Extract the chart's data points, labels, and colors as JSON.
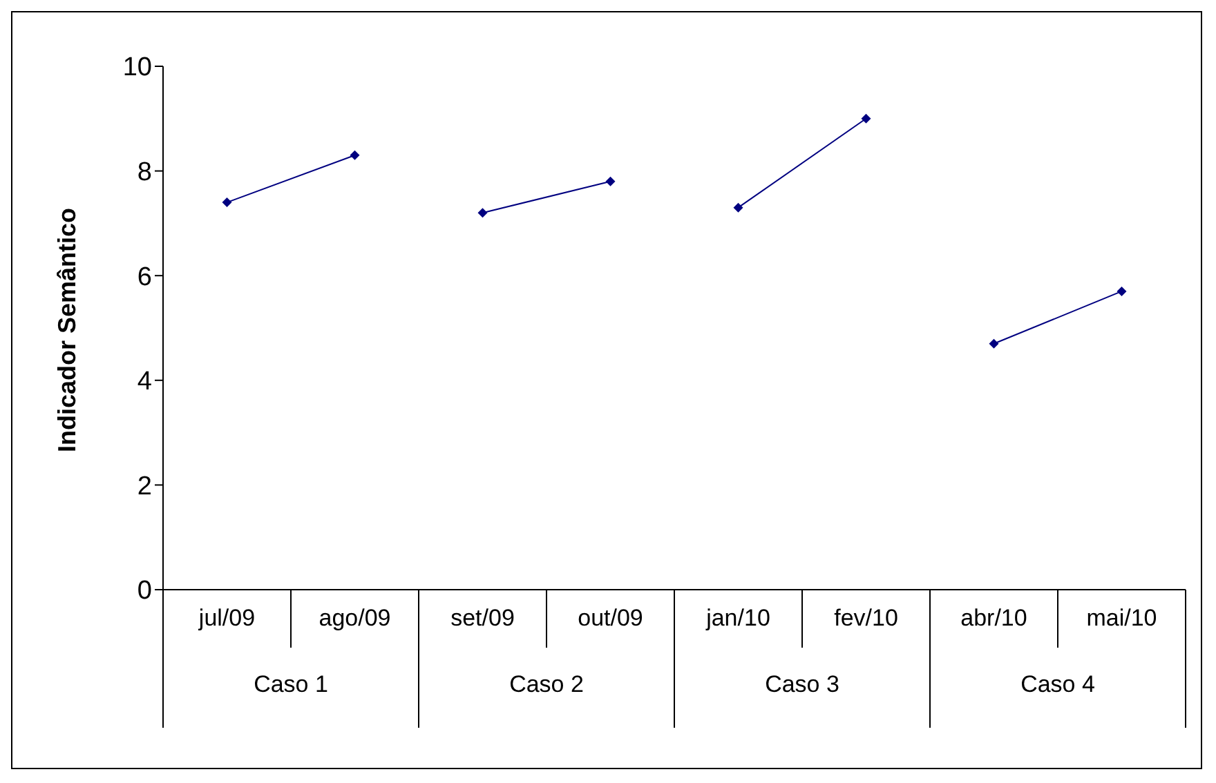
{
  "chart_data": {
    "type": "line",
    "ylabel": "Indicador Semântico",
    "categories": [
      "jul/09",
      "ago/09",
      "set/09",
      "out/09",
      "jan/10",
      "fev/10",
      "abr/10",
      "mai/10"
    ],
    "series": [
      {
        "color": "#000080",
        "values": [
          7.4,
          8.3,
          null,
          null,
          null,
          null,
          null,
          null
        ]
      },
      {
        "color": "#000080",
        "values": [
          null,
          null,
          7.2,
          7.8,
          null,
          null,
          null,
          null
        ]
      },
      {
        "color": "#000080",
        "values": [
          null,
          null,
          null,
          null,
          7.3,
          9.0,
          null,
          null
        ]
      },
      {
        "color": "#000080",
        "values": [
          null,
          null,
          null,
          null,
          null,
          null,
          4.7,
          5.7
        ]
      }
    ],
    "annotations": [
      "Caso 1",
      "Caso 2",
      "Caso 3",
      "Caso 4"
    ],
    "ylim": [
      0,
      10
    ],
    "yticks": [
      0,
      2,
      4,
      6,
      8,
      10
    ],
    "marker": "diamond"
  }
}
